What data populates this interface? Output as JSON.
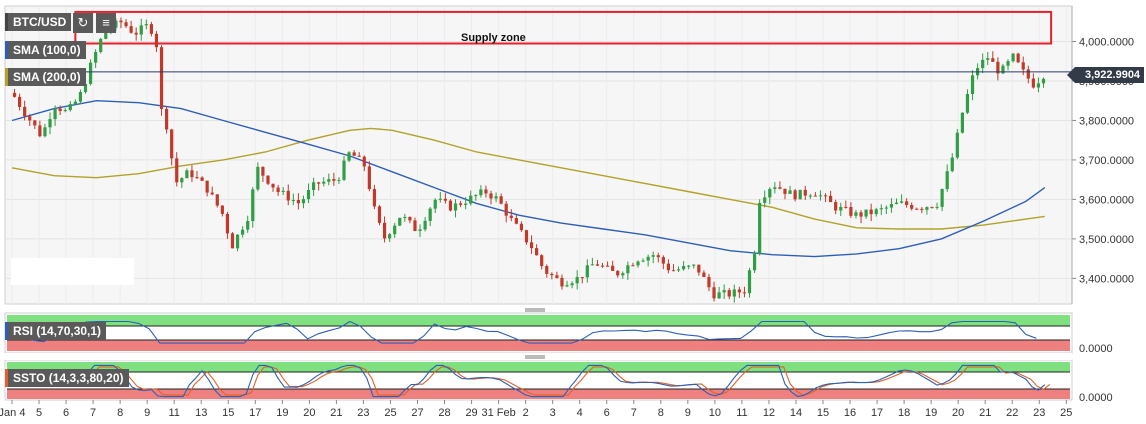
{
  "toolbar": {
    "symbol": "BTC/USD",
    "refresh_icon": "refresh-icon",
    "bars_icon": "bar-chart-icon"
  },
  "indicators": {
    "sma100": "SMA (100,0)",
    "sma200": "SMA (200,0)",
    "rsi": "RSI (14,70,30,1)",
    "ssto": "SSTO (14,3,3,80,20)"
  },
  "annotations": {
    "supply_zone": "Supply zone"
  },
  "last_price": "3,922.9904",
  "colors": {
    "sma100": "#2e5fb8",
    "sma200": "#b3a12a",
    "up_candle": "#2f9e44",
    "down_candle": "#c0392b",
    "supply_zone": "#e8202a",
    "overbought": "#7ee07e",
    "oversold": "#ef8080"
  },
  "chart_data": {
    "type": "candlestick",
    "symbol": "BTC/USD",
    "y_axis": {
      "ticks": [
        "4,000.0000",
        "3,900.0000",
        "3,800.0000",
        "3,700.0000",
        "3,600.0000",
        "3,500.0000",
        "3,400.0000"
      ],
      "tick_values": [
        4000,
        3900,
        3800,
        3700,
        3600,
        3500,
        3400
      ],
      "range": [
        3335,
        4090
      ]
    },
    "x_axis": {
      "ticks": [
        "Jan 4",
        "5",
        "6",
        "7",
        "8",
        "9",
        "11",
        "13",
        "15",
        "17",
        "19",
        "20",
        "21",
        "23",
        "25",
        "27",
        "28",
        "29",
        "31 Feb",
        "2",
        "3",
        "4",
        "6",
        "7",
        "8",
        "9",
        "10",
        "11",
        "12",
        "14",
        "15",
        "16",
        "17",
        "18",
        "19",
        "20",
        "21",
        "22",
        "23",
        "25"
      ],
      "tick_pos": [
        0.0,
        0.64,
        1.28,
        1.92,
        2.56,
        3.2,
        3.84,
        4.48,
        5.12,
        5.76,
        6.4,
        7.04,
        7.68,
        8.32,
        8.96,
        9.6,
        10.24,
        10.88,
        11.52,
        12.16,
        12.8,
        13.44,
        14.08,
        14.72,
        15.36,
        16.0,
        16.64,
        17.28,
        17.92,
        18.56,
        19.2,
        19.84,
        20.48,
        21.12,
        21.76,
        22.4,
        23.04,
        23.68,
        24.32,
        24.96
      ],
      "range": [
        0,
        25
      ]
    },
    "price_path": [
      [
        0.0,
        3870
      ],
      [
        0.3,
        3820
      ],
      [
        0.7,
        3760
      ],
      [
        1.0,
        3840
      ],
      [
        1.3,
        3820
      ],
      [
        1.6,
        3860
      ],
      [
        1.9,
        3950
      ],
      [
        2.2,
        4030
      ],
      [
        2.6,
        4050
      ],
      [
        2.9,
        4020
      ],
      [
        3.2,
        4040
      ],
      [
        3.4,
        4020
      ],
      [
        3.55,
        3810
      ],
      [
        3.7,
        3780
      ],
      [
        3.85,
        3640
      ],
      [
        4.2,
        3670
      ],
      [
        4.6,
        3630
      ],
      [
        5.0,
        3560
      ],
      [
        5.2,
        3480
      ],
      [
        5.6,
        3560
      ],
      [
        5.8,
        3680
      ],
      [
        6.3,
        3620
      ],
      [
        6.8,
        3590
      ],
      [
        7.2,
        3640
      ],
      [
        7.7,
        3650
      ],
      [
        8.0,
        3720
      ],
      [
        8.4,
        3680
      ],
      [
        8.5,
        3600
      ],
      [
        8.8,
        3500
      ],
      [
        9.2,
        3560
      ],
      [
        9.6,
        3520
      ],
      [
        10.0,
        3600
      ],
      [
        10.4,
        3580
      ],
      [
        10.8,
        3600
      ],
      [
        11.2,
        3620
      ],
      [
        11.5,
        3600
      ],
      [
        11.8,
        3550
      ],
      [
        12.3,
        3480
      ],
      [
        12.6,
        3420
      ],
      [
        13.0,
        3390
      ],
      [
        13.4,
        3400
      ],
      [
        13.8,
        3440
      ],
      [
        14.3,
        3410
      ],
      [
        14.8,
        3450
      ],
      [
        15.2,
        3460
      ],
      [
        15.6,
        3420
      ],
      [
        16.2,
        3430
      ],
      [
        16.6,
        3360
      ],
      [
        17.0,
        3360
      ],
      [
        17.35,
        3370
      ],
      [
        17.6,
        3480
      ],
      [
        17.7,
        3600
      ],
      [
        18.0,
        3640
      ],
      [
        18.5,
        3610
      ],
      [
        19.0,
        3620
      ],
      [
        19.5,
        3580
      ],
      [
        20.0,
        3560
      ],
      [
        20.5,
        3570
      ],
      [
        21.0,
        3590
      ],
      [
        21.5,
        3580
      ],
      [
        21.9,
        3590
      ],
      [
        22.1,
        3650
      ],
      [
        22.3,
        3720
      ],
      [
        22.5,
        3820
      ],
      [
        22.8,
        3930
      ],
      [
        23.1,
        3960
      ],
      [
        23.4,
        3920
      ],
      [
        23.7,
        3960
      ],
      [
        23.95,
        3920
      ],
      [
        24.2,
        3890
      ],
      [
        24.45,
        3920
      ]
    ],
    "series": [
      {
        "name": "SMA (100,0)",
        "values": [
          [
            0.0,
            3800
          ],
          [
            1.0,
            3830
          ],
          [
            2.0,
            3850
          ],
          [
            3.0,
            3845
          ],
          [
            4.0,
            3830
          ],
          [
            5.0,
            3800
          ],
          [
            6.0,
            3770
          ],
          [
            7.0,
            3740
          ],
          [
            8.0,
            3710
          ],
          [
            9.0,
            3670
          ],
          [
            10.0,
            3630
          ],
          [
            11.0,
            3590
          ],
          [
            12.0,
            3560
          ],
          [
            13.0,
            3540
          ],
          [
            14.0,
            3525
          ],
          [
            15.0,
            3510
          ],
          [
            16.0,
            3490
          ],
          [
            17.0,
            3470
          ],
          [
            18.0,
            3460
          ],
          [
            19.0,
            3455
          ],
          [
            20.0,
            3462
          ],
          [
            21.0,
            3475
          ],
          [
            22.0,
            3500
          ],
          [
            23.0,
            3545
          ],
          [
            24.0,
            3595
          ],
          [
            24.45,
            3630
          ]
        ]
      },
      {
        "name": "SMA (200,0)",
        "values": [
          [
            0.0,
            3680
          ],
          [
            1.0,
            3660
          ],
          [
            2.0,
            3655
          ],
          [
            3.0,
            3665
          ],
          [
            4.0,
            3685
          ],
          [
            5.0,
            3700
          ],
          [
            6.0,
            3720
          ],
          [
            7.0,
            3750
          ],
          [
            8.0,
            3775
          ],
          [
            8.5,
            3780
          ],
          [
            9.0,
            3775
          ],
          [
            10.0,
            3750
          ],
          [
            11.0,
            3720
          ],
          [
            12.0,
            3700
          ],
          [
            13.0,
            3680
          ],
          [
            14.0,
            3660
          ],
          [
            15.0,
            3640
          ],
          [
            16.0,
            3620
          ],
          [
            17.0,
            3600
          ],
          [
            18.0,
            3580
          ],
          [
            19.0,
            3550
          ],
          [
            20.0,
            3528
          ],
          [
            21.0,
            3525
          ],
          [
            22.0,
            3525
          ],
          [
            23.0,
            3535
          ],
          [
            24.0,
            3550
          ],
          [
            24.45,
            3557
          ]
        ]
      }
    ],
    "supply_zone": {
      "from": 3995,
      "to": 4075,
      "x_from": 1.5,
      "x_to": 24.6,
      "label": "Supply zone"
    },
    "rsi_panel": {
      "ticks": [
        "0.0000"
      ],
      "tick_values": [
        0
      ],
      "overbought": 70,
      "oversold": 30
    },
    "ssto_panel": {
      "ticks": [
        "0.0000"
      ],
      "tick_values": [
        0
      ],
      "overbought": 80,
      "oversold": 20
    }
  }
}
